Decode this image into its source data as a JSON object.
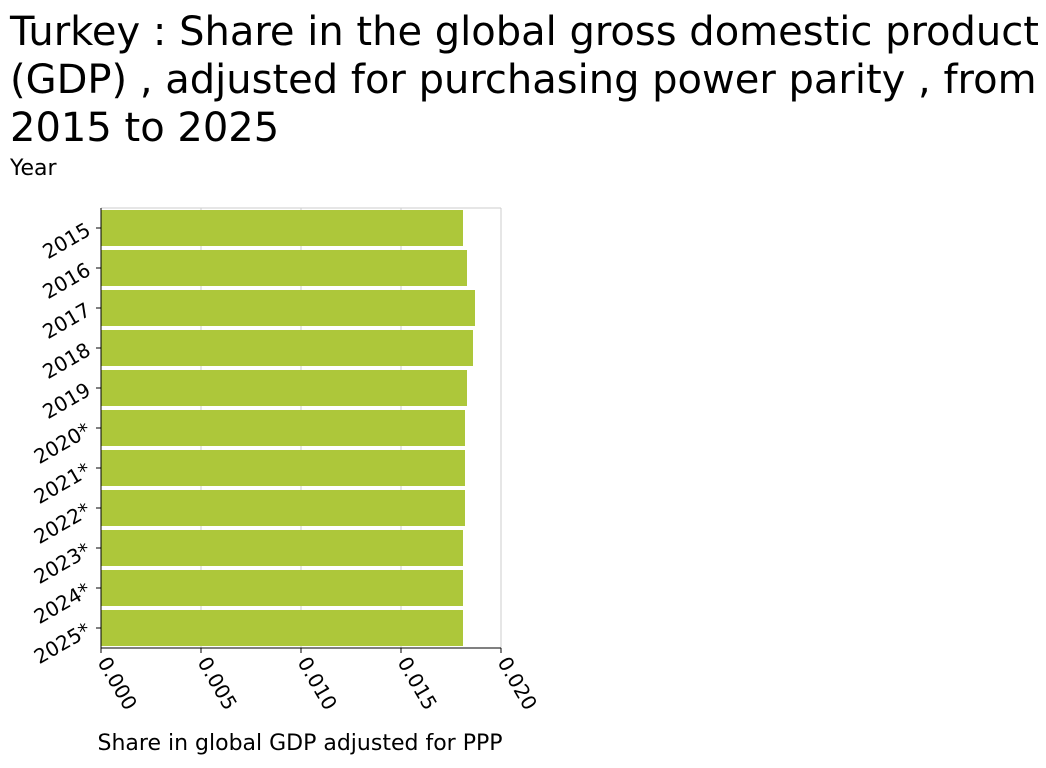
{
  "chart_data": {
    "type": "bar",
    "orientation": "horizontal",
    "title": "Turkey : Share in the global gross domestic product (GDP) , adjusted for purchasing power parity , from 2015 to 2025",
    "ylabel": "Year",
    "xlabel": "Share in global GDP adjusted for PPP",
    "categories": [
      "2015",
      "2016",
      "2017",
      "2018",
      "2019",
      "2020*",
      "2021*",
      "2022*",
      "2023*",
      "2024*",
      "2025*"
    ],
    "values": [
      0.0181,
      0.0183,
      0.0187,
      0.0186,
      0.0183,
      0.0182,
      0.0182,
      0.0182,
      0.0181,
      0.0181,
      0.0181
    ],
    "xlim": [
      0,
      0.02
    ],
    "xticks": [
      "0.000",
      "0.005",
      "0.010",
      "0.015",
      "0.020"
    ],
    "grid": true,
    "bar_color": "#adc73a",
    "grid_color": "#cccccc"
  }
}
